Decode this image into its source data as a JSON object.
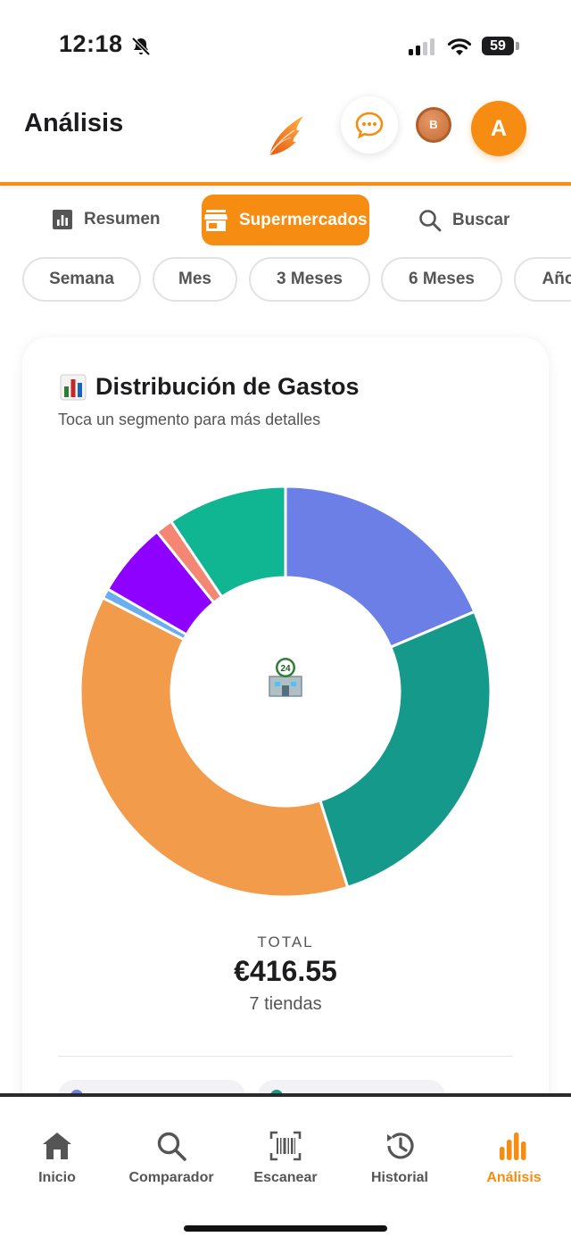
{
  "status_bar": {
    "time": "12:18",
    "battery": "59"
  },
  "header": {
    "title": "Análisis",
    "badge_letter": "B",
    "avatar_letter": "A"
  },
  "tabs": [
    {
      "label": "Resumen"
    },
    {
      "label": "Supermercados"
    },
    {
      "label": "Buscar"
    }
  ],
  "periods": [
    "Semana",
    "Mes",
    "3 Meses",
    "6 Meses",
    "Año"
  ],
  "card": {
    "title": "Distribución de Gastos",
    "subtitle": "Toca un segmento para más detalles",
    "total_label": "TOTAL",
    "total_value": "€416.55",
    "stores_count": "7 tiendas"
  },
  "chart_data": {
    "type": "pie",
    "style": "donut",
    "unit": "%",
    "segments": [
      {
        "share": 19,
        "color": "#6b7fe6"
      },
      {
        "share": 27,
        "color": "#14998a"
      },
      {
        "share": 38.2,
        "color": "#f29b4a"
      },
      {
        "share": 0.8,
        "color": "#6aaef0"
      },
      {
        "share": 6,
        "color": "#8e00ff"
      },
      {
        "share": 1.4,
        "color": "#f48773"
      },
      {
        "share": 9.6,
        "color": "#10b591"
      }
    ]
  },
  "nav": [
    {
      "label": "Inicio"
    },
    {
      "label": "Comparador"
    },
    {
      "label": "Escanear"
    },
    {
      "label": "Historial"
    },
    {
      "label": "Análisis"
    }
  ],
  "colors": {
    "accent": "#f78c12",
    "text": "#1c1c1e",
    "muted": "#555555"
  }
}
